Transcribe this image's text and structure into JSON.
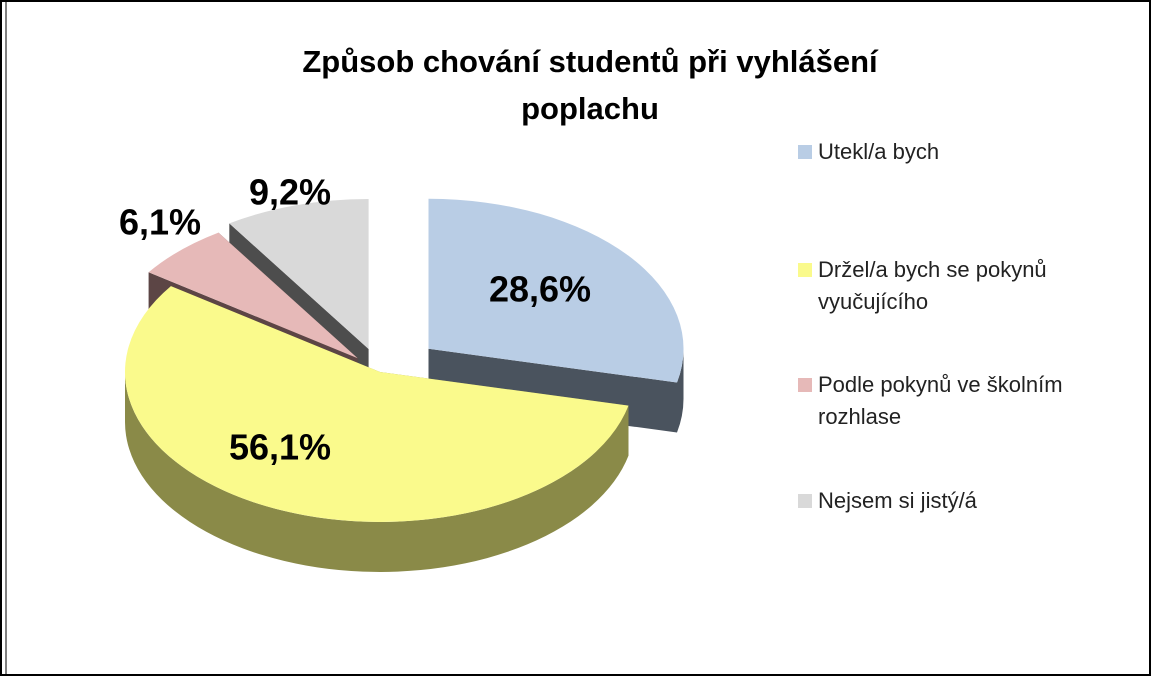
{
  "chart_data": {
    "type": "pie",
    "title": "Způsob chování studentů při vyhlášení poplachu",
    "categories": [
      "Utekl/a bych",
      "Držel/a bych se pokynů vyučujícího",
      "Podle pokynů ve školním rozhlase",
      "Nejsem si jistý/á"
    ],
    "values": [
      28.6,
      56.1,
      6.1,
      9.2
    ],
    "value_labels": [
      "28,6%",
      "56,1%",
      "6,1%",
      "9,2%"
    ],
    "colors": [
      "#b9cde5",
      "#fafa8c",
      "#e6b9b8",
      "#d9d9d9"
    ],
    "legend": "right"
  }
}
